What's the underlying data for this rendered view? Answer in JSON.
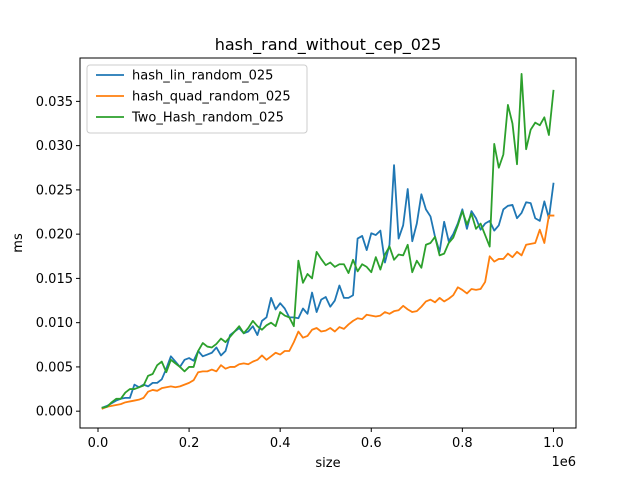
{
  "chart_data": {
    "type": "line",
    "title": "hash_rand_without_cep_025",
    "xlabel": "size",
    "ylabel": "ms",
    "x_offset_text": "1e6",
    "xlim": [
      -0.0395,
      1.0495
    ],
    "ylim": [
      -0.0019,
      0.0399
    ],
    "x_ticks": [
      0.0,
      0.2,
      0.4,
      0.6,
      0.8,
      1.0
    ],
    "x_tick_labels": [
      "0.0",
      "0.2",
      "0.4",
      "0.6",
      "0.8",
      "1.0"
    ],
    "y_ticks": [
      0.0,
      0.005,
      0.01,
      0.015,
      0.02,
      0.025,
      0.03,
      0.035
    ],
    "y_tick_labels": [
      "0.000",
      "0.005",
      "0.010",
      "0.015",
      "0.020",
      "0.025",
      "0.030",
      "0.035"
    ],
    "grid": false,
    "legend_position": "top-left",
    "x": [
      0.01,
      0.02,
      0.03,
      0.04,
      0.05,
      0.06,
      0.07,
      0.08,
      0.09,
      0.1,
      0.11,
      0.12,
      0.13,
      0.14,
      0.15,
      0.16,
      0.17,
      0.18,
      0.19,
      0.2,
      0.21,
      0.22,
      0.23,
      0.24,
      0.25,
      0.26,
      0.27,
      0.28,
      0.29,
      0.3,
      0.31,
      0.32,
      0.33,
      0.34,
      0.35,
      0.36,
      0.37,
      0.38,
      0.39,
      0.4,
      0.41,
      0.42,
      0.43,
      0.44,
      0.45,
      0.46,
      0.47,
      0.48,
      0.49,
      0.5,
      0.51,
      0.52,
      0.53,
      0.54,
      0.55,
      0.56,
      0.57,
      0.58,
      0.59,
      0.6,
      0.61,
      0.62,
      0.63,
      0.64,
      0.65,
      0.66,
      0.67,
      0.68,
      0.69,
      0.7,
      0.71,
      0.72,
      0.73,
      0.74,
      0.75,
      0.76,
      0.77,
      0.78,
      0.79,
      0.8,
      0.81,
      0.82,
      0.83,
      0.84,
      0.85,
      0.86,
      0.87,
      0.88,
      0.89,
      0.9,
      0.91,
      0.92,
      0.93,
      0.94,
      0.95,
      0.96,
      0.97,
      0.98,
      0.99,
      1.0
    ],
    "series": [
      {
        "name": "hash_lin_random_025",
        "color": "#1f77b4",
        "values": [
          0.0004,
          0.0006,
          0.0009,
          0.0012,
          0.0014,
          0.0015,
          0.0015,
          0.003,
          0.0027,
          0.003,
          0.0028,
          0.0032,
          0.0032,
          0.0036,
          0.0048,
          0.0062,
          0.0056,
          0.005,
          0.0058,
          0.006,
          0.0057,
          0.0068,
          0.0062,
          0.0064,
          0.0066,
          0.0072,
          0.0063,
          0.0068,
          0.0086,
          0.009,
          0.0094,
          0.0088,
          0.009,
          0.0096,
          0.0086,
          0.0102,
          0.0106,
          0.0128,
          0.0115,
          0.0122,
          0.0116,
          0.0106,
          0.0106,
          0.0105,
          0.0116,
          0.011,
          0.0134,
          0.0112,
          0.0126,
          0.0129,
          0.0118,
          0.0125,
          0.0142,
          0.0128,
          0.0128,
          0.0131,
          0.0195,
          0.0198,
          0.0182,
          0.0201,
          0.0199,
          0.0204,
          0.0168,
          0.0188,
          0.0278,
          0.0195,
          0.021,
          0.0251,
          0.0192,
          0.0212,
          0.0245,
          0.0228,
          0.022,
          0.0197,
          0.018,
          0.0214,
          0.0192,
          0.02,
          0.0212,
          0.0228,
          0.0206,
          0.0226,
          0.0218,
          0.0205,
          0.0212,
          0.0215,
          0.0204,
          0.021,
          0.0228,
          0.0232,
          0.0233,
          0.0218,
          0.0224,
          0.0236,
          0.0235,
          0.0218,
          0.0215,
          0.0237,
          0.0218,
          0.0257
        ]
      },
      {
        "name": "hash_quad_random_025",
        "color": "#ff7f0e",
        "values": [
          0.0003,
          0.0005,
          0.0006,
          0.0007,
          0.0008,
          0.001,
          0.0011,
          0.0012,
          0.0013,
          0.0015,
          0.0022,
          0.0024,
          0.0023,
          0.0026,
          0.0027,
          0.0028,
          0.0027,
          0.0028,
          0.003,
          0.0032,
          0.0035,
          0.0044,
          0.0045,
          0.0045,
          0.0047,
          0.0045,
          0.0052,
          0.0048,
          0.005,
          0.005,
          0.0053,
          0.0054,
          0.0053,
          0.0056,
          0.0058,
          0.0063,
          0.0058,
          0.0062,
          0.0066,
          0.0064,
          0.0068,
          0.0068,
          0.0078,
          0.009,
          0.0083,
          0.0085,
          0.0092,
          0.0094,
          0.009,
          0.0091,
          0.0094,
          0.009,
          0.0095,
          0.0093,
          0.0098,
          0.0102,
          0.0105,
          0.0104,
          0.0109,
          0.0108,
          0.0107,
          0.0108,
          0.0112,
          0.011,
          0.0113,
          0.0114,
          0.0119,
          0.0115,
          0.0112,
          0.0113,
          0.0118,
          0.0124,
          0.0126,
          0.0123,
          0.0128,
          0.0124,
          0.0127,
          0.0131,
          0.014,
          0.0137,
          0.0133,
          0.0138,
          0.0137,
          0.0138,
          0.0146,
          0.0175,
          0.0169,
          0.0172,
          0.0172,
          0.0178,
          0.0174,
          0.018,
          0.0176,
          0.0188,
          0.0189,
          0.019,
          0.0205,
          0.019,
          0.0221,
          0.0221
        ]
      },
      {
        "name": "Two_Hash_random_025",
        "color": "#2ca02c",
        "values": [
          0.0004,
          0.0005,
          0.001,
          0.0014,
          0.0014,
          0.0021,
          0.0025,
          0.0025,
          0.0027,
          0.0029,
          0.004,
          0.0042,
          0.0052,
          0.0056,
          0.0044,
          0.0058,
          0.0054,
          0.005,
          0.0045,
          0.005,
          0.005,
          0.0068,
          0.0077,
          0.0073,
          0.0072,
          0.0076,
          0.0082,
          0.0078,
          0.0084,
          0.009,
          0.0096,
          0.0088,
          0.0094,
          0.0102,
          0.0096,
          0.0092,
          0.0097,
          0.01,
          0.0096,
          0.0112,
          0.0108,
          0.0106,
          0.0096,
          0.017,
          0.0145,
          0.0155,
          0.015,
          0.018,
          0.0172,
          0.0165,
          0.0168,
          0.0163,
          0.0166,
          0.0166,
          0.0156,
          0.0171,
          0.0158,
          0.0166,
          0.0163,
          0.0157,
          0.0174,
          0.016,
          0.0177,
          0.0186,
          0.0171,
          0.0177,
          0.0176,
          0.0188,
          0.0157,
          0.017,
          0.0162,
          0.0188,
          0.019,
          0.0197,
          0.0176,
          0.0178,
          0.019,
          0.0196,
          0.021,
          0.0226,
          0.0211,
          0.0223,
          0.0206,
          0.0212,
          0.0199,
          0.0186,
          0.0302,
          0.0275,
          0.029,
          0.0346,
          0.0325,
          0.0279,
          0.0381,
          0.0296,
          0.0318,
          0.0326,
          0.0323,
          0.0332,
          0.0312,
          0.0362
        ]
      }
    ]
  }
}
